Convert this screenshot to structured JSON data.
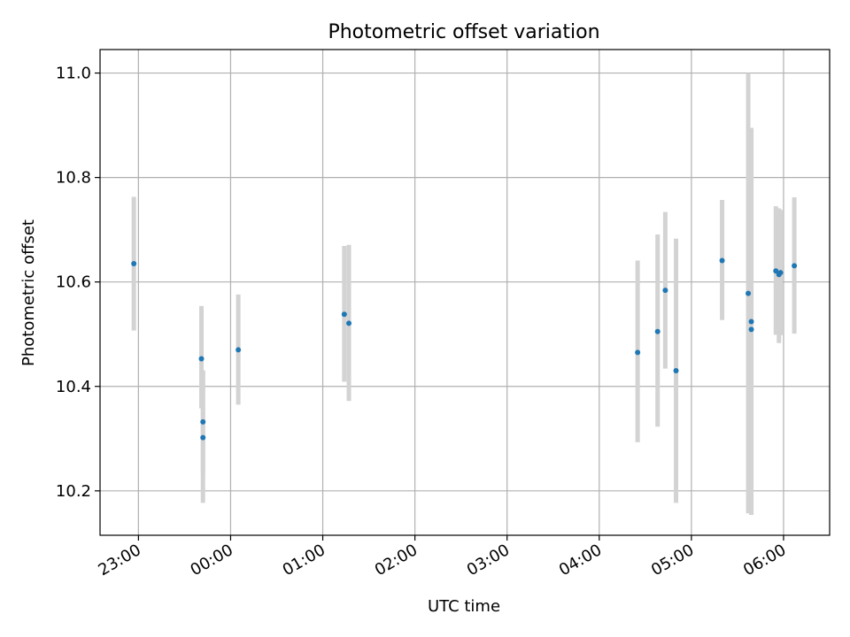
{
  "chart_data": {
    "type": "scatter",
    "title": "Photometric offset variation",
    "xlabel": "UTC time",
    "ylabel": "Photometric offset",
    "x_axis": {
      "kind": "time",
      "range": [
        "22:35",
        "06:30"
      ],
      "ticks": [
        "23:00",
        "00:00",
        "01:00",
        "02:00",
        "03:00",
        "04:00",
        "05:00",
        "06:00"
      ]
    },
    "y_axis": {
      "range": [
        10.115,
        11.045
      ],
      "ticks": [
        "10.2",
        "10.4",
        "10.6",
        "10.8",
        "11.0"
      ]
    },
    "grid": true,
    "point_color": "#1f77b4",
    "errorbar_color": "#d3d3d3",
    "points": [
      {
        "time": "22:57",
        "y": 10.635,
        "err_low": 10.507,
        "err_high": 10.763
      },
      {
        "time": "23:41",
        "y": 10.453,
        "err_low": 10.358,
        "err_high": 10.554
      },
      {
        "time": "23:42",
        "y": 10.332,
        "err_low": 10.235,
        "err_high": 10.431
      },
      {
        "time": "23:42",
        "y": 10.302,
        "err_low": 10.177,
        "err_high": 10.428
      },
      {
        "time": "00:05",
        "y": 10.47,
        "err_low": 10.365,
        "err_high": 10.576
      },
      {
        "time": "01:14",
        "y": 10.538,
        "err_low": 10.409,
        "err_high": 10.669
      },
      {
        "time": "01:17",
        "y": 10.521,
        "err_low": 10.372,
        "err_high": 10.671
      },
      {
        "time": "04:25",
        "y": 10.465,
        "err_low": 10.293,
        "err_high": 10.641
      },
      {
        "time": "04:38",
        "y": 10.505,
        "err_low": 10.323,
        "err_high": 10.691
      },
      {
        "time": "04:43",
        "y": 10.584,
        "err_low": 10.434,
        "err_high": 10.734
      },
      {
        "time": "04:50",
        "y": 10.43,
        "err_low": 10.177,
        "err_high": 10.683
      },
      {
        "time": "05:20",
        "y": 10.641,
        "err_low": 10.527,
        "err_high": 10.757
      },
      {
        "time": "05:37",
        "y": 10.578,
        "err_low": 10.157,
        "err_high": 11.0
      },
      {
        "time": "05:39",
        "y": 10.509,
        "err_low": 10.154,
        "err_high": 10.895
      },
      {
        "time": "05:39",
        "y": 10.524,
        "err_low": 10.154,
        "err_high": 10.895
      },
      {
        "time": "05:55",
        "y": 10.621,
        "err_low": 10.499,
        "err_high": 10.745
      },
      {
        "time": "05:57",
        "y": 10.614,
        "err_low": 10.483,
        "err_high": 10.741
      },
      {
        "time": "05:58",
        "y": 10.618,
        "err_low": 10.498,
        "err_high": 10.738
      },
      {
        "time": "06:07",
        "y": 10.631,
        "err_low": 10.501,
        "err_high": 10.762
      }
    ]
  }
}
